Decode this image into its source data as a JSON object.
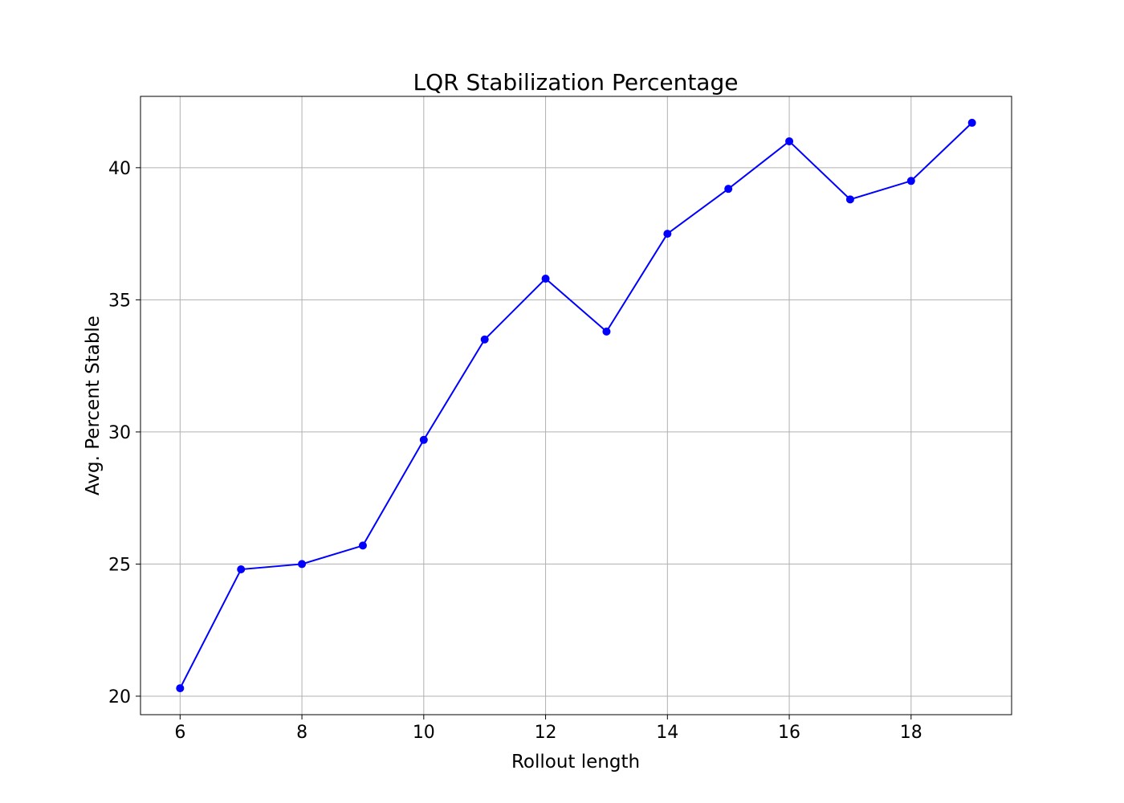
{
  "chart_data": {
    "type": "line",
    "title": "LQR Stabilization Percentage",
    "xlabel": "Rollout length",
    "ylabel": "Avg. Percent Stable",
    "xlim": [
      5.35,
      19.65
    ],
    "ylim": [
      19.3,
      42.7
    ],
    "xticks": [
      6,
      8,
      10,
      12,
      14,
      16,
      18
    ],
    "yticks": [
      20,
      25,
      30,
      35,
      40
    ],
    "grid": true,
    "series": [
      {
        "color": "#0000ff",
        "marker": "circle",
        "x": [
          6,
          7,
          8,
          9,
          10,
          11,
          12,
          13,
          14,
          15,
          16,
          17,
          18,
          19
        ],
        "y": [
          20.3,
          24.8,
          25.0,
          25.7,
          29.7,
          33.5,
          35.8,
          33.8,
          37.5,
          39.2,
          41.0,
          38.8,
          39.5,
          41.7
        ]
      }
    ]
  }
}
